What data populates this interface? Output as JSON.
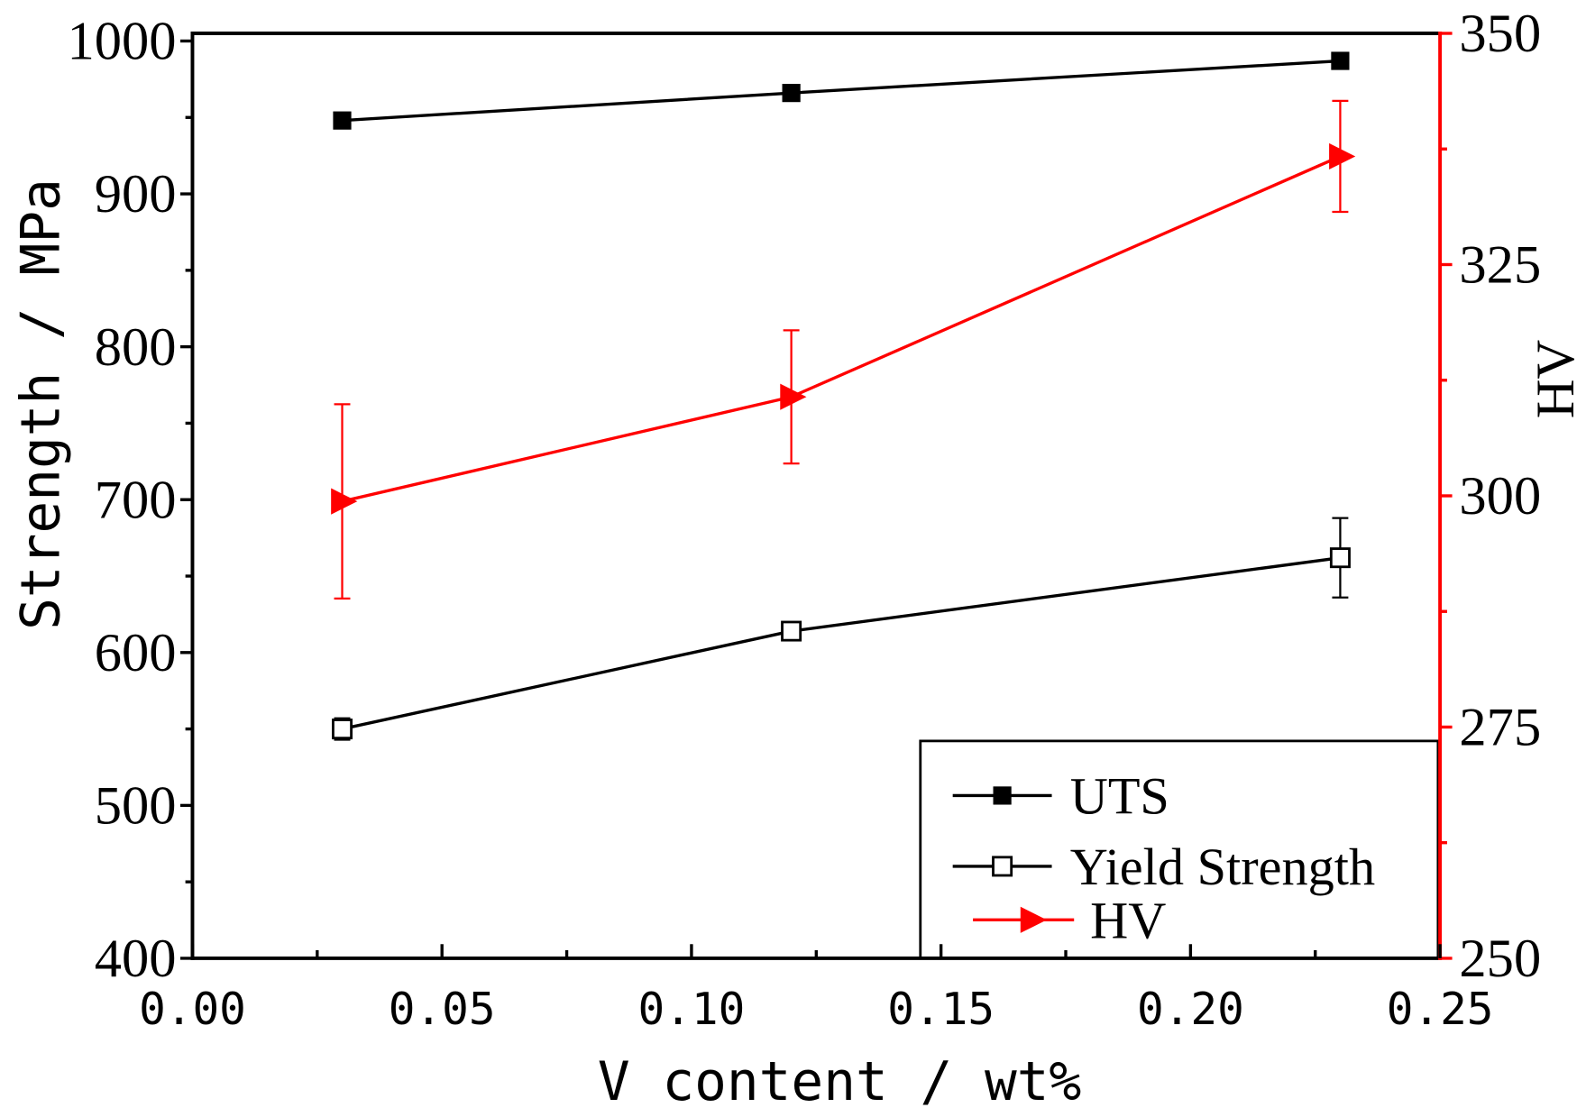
{
  "chart_data": {
    "type": "line",
    "title": "",
    "xlabel": "V content / wt%",
    "ylabel": "Strength / MPa",
    "y2label": "HV",
    "xlim": [
      0.0,
      0.25
    ],
    "ylim": [
      400,
      1005
    ],
    "y2lim": [
      250,
      350
    ],
    "x_ticks": [
      "0.00",
      "0.05",
      "0.10",
      "0.15",
      "0.20",
      "0.25"
    ],
    "y_ticks": [
      "400",
      "500",
      "600",
      "700",
      "800",
      "900",
      "1000"
    ],
    "y2_ticks": [
      "250",
      "275",
      "300",
      "325",
      "350"
    ],
    "grid": false,
    "legend_position": "bottom-right",
    "axis_colors": {
      "left": "#000000",
      "bottom": "#000000",
      "top": "#000000",
      "right": "#ff0000"
    },
    "series": [
      {
        "name": "UTS",
        "y_axis": "left",
        "marker": "filled-square",
        "color": "#000000",
        "x": [
          0.03,
          0.12,
          0.23
        ],
        "y": [
          948,
          966,
          987
        ]
      },
      {
        "name": "Yield Strength",
        "y_axis": "left",
        "marker": "open-square",
        "color": "#000000",
        "x": [
          0.03,
          0.12,
          0.23
        ],
        "y": [
          550,
          614,
          662
        ],
        "error": [
          7,
          4,
          26
        ]
      },
      {
        "name": "HV",
        "y_axis": "right",
        "marker": "right-triangle",
        "color": "#ff0000",
        "x": [
          0.03,
          0.12,
          0.23
        ],
        "y": [
          299.4,
          310.7,
          336.7
        ],
        "error": [
          10.5,
          7.2,
          6.0
        ]
      }
    ]
  }
}
